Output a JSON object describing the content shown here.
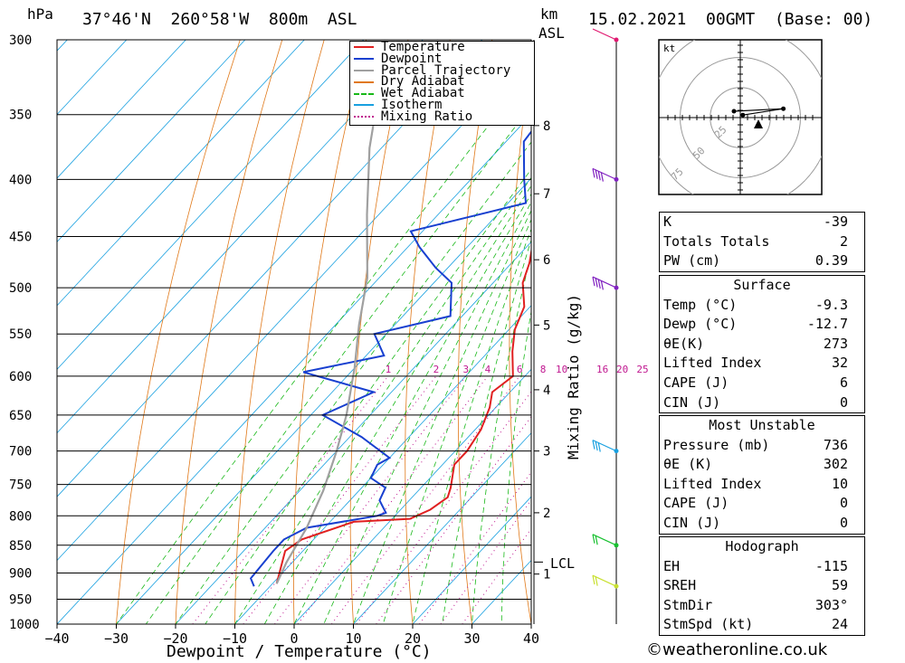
{
  "header": {
    "location": "37°46'N  260°58'W  800m  ASL",
    "datetime": "15.02.2021  00GMT  (Base: 00)",
    "hpa_label": "hPa",
    "km_label": "km",
    "asl_label": "ASL",
    "mixing_label": "Mixing Ratio (g/kg)",
    "x_axis_label": "Dewpoint / Temperature (°C)",
    "lcl_label": "LCL"
  },
  "legend": [
    {
      "label": "Temperature",
      "color": "#e02020",
      "style": "solid"
    },
    {
      "label": "Dewpoint",
      "color": "#1840d0",
      "style": "solid"
    },
    {
      "label": "Parcel Trajectory",
      "color": "#a0a0a0",
      "style": "solid"
    },
    {
      "label": "Dry Adiabat",
      "color": "#e07818",
      "style": "solid"
    },
    {
      "label": "Wet Adiabat",
      "color": "#18b818",
      "style": "dashed"
    },
    {
      "label": "Isotherm",
      "color": "#18a0e0",
      "style": "solid"
    },
    {
      "label": "Mixing Ratio",
      "color": "#c01890",
      "style": "dotted"
    }
  ],
  "chart_data": {
    "type": "line",
    "title": "37°46'N  260°58'W  800m  ASL",
    "xlabel": "Dewpoint / Temperature (°C)",
    "ylabel": "hPa",
    "xlim": [
      -40,
      40
    ],
    "ylim": [
      1000,
      300
    ],
    "x_ticks": [
      -40,
      -30,
      -20,
      -10,
      0,
      10,
      20,
      30,
      40
    ],
    "pressure_levels": [
      300,
      350,
      400,
      450,
      500,
      550,
      600,
      650,
      700,
      750,
      800,
      850,
      900,
      950,
      1000
    ],
    "km_ticks": [
      {
        "label": "8",
        "p": 358
      },
      {
        "label": "7",
        "p": 412
      },
      {
        "label": "6",
        "p": 472
      },
      {
        "label": "5",
        "p": 540
      },
      {
        "label": "4",
        "p": 617
      },
      {
        "label": "3",
        "p": 700
      },
      {
        "label": "2",
        "p": 795
      },
      {
        "label": "1",
        "p": 902
      }
    ],
    "lcl_pressure": 880,
    "mixing_ratio_labels": [
      "1",
      "2",
      "3",
      "4",
      "6",
      "8",
      "10",
      "16",
      "20",
      "25"
    ],
    "mixing_ratio_values": [
      1,
      2,
      3,
      4,
      6,
      8,
      10,
      16,
      20,
      25
    ],
    "series": [
      {
        "name": "Temperature",
        "color": "#e02020",
        "points": [
          [
            -9.3,
            920
          ],
          [
            -13,
            860
          ],
          [
            -12,
            840
          ],
          [
            -6,
            810
          ],
          [
            3,
            805
          ],
          [
            5,
            790
          ],
          [
            6,
            770
          ],
          [
            5,
            755
          ],
          [
            2,
            720
          ],
          [
            2,
            700
          ],
          [
            1,
            670
          ],
          [
            -1,
            640
          ],
          [
            -3,
            620
          ],
          [
            -2,
            600
          ],
          [
            -6,
            570
          ],
          [
            -9,
            545
          ],
          [
            -11,
            520
          ],
          [
            -15,
            495
          ],
          [
            -17,
            475
          ],
          [
            -19,
            460
          ],
          [
            -23,
            430
          ],
          [
            -29,
            395
          ],
          [
            -37,
            350
          ],
          [
            -45,
            310
          ],
          [
            -47,
            300
          ]
        ]
      },
      {
        "name": "Dewpoint",
        "color": "#1840d0",
        "points": [
          [
            -12.7,
            925
          ],
          [
            -14.5,
            910
          ],
          [
            -15,
            860
          ],
          [
            -15,
            840
          ],
          [
            -13,
            820
          ],
          [
            -3,
            800
          ],
          [
            -2,
            795
          ],
          [
            -5,
            775
          ],
          [
            -6,
            755
          ],
          [
            -10,
            740
          ],
          [
            -11,
            720
          ],
          [
            -10,
            710
          ],
          [
            -18,
            680
          ],
          [
            -28,
            650
          ],
          [
            -23,
            620
          ],
          [
            -38,
            595
          ],
          [
            -27,
            575
          ],
          [
            -32,
            550
          ],
          [
            -22,
            530
          ],
          [
            -27,
            495
          ],
          [
            -32,
            480
          ],
          [
            -38,
            460
          ],
          [
            -42,
            445
          ],
          [
            -27,
            420
          ],
          [
            -31,
            400
          ],
          [
            -37,
            370
          ],
          [
            -38,
            345
          ],
          [
            -40,
            320
          ],
          [
            -48,
            300
          ]
        ]
      },
      {
        "name": "Parcel Trajectory",
        "color": "#a0a0a0",
        "points": [
          [
            -9.3,
            920
          ],
          [
            -11,
            880
          ],
          [
            -13,
            820
          ],
          [
            -16,
            760
          ],
          [
            -20,
            700
          ],
          [
            -24,
            650
          ],
          [
            -30,
            590
          ],
          [
            -36,
            540
          ],
          [
            -42,
            490
          ],
          [
            -52,
            430
          ],
          [
            -62,
            375
          ],
          [
            -70,
            330
          ]
        ]
      }
    ]
  },
  "hodograph": {
    "unit_label": "kt",
    "ring_labels": [
      "25",
      "50",
      "75"
    ],
    "stations": [
      [
        2,
        -2
      ],
      [
        34,
        -7
      ],
      [
        -5,
        -5
      ]
    ]
  },
  "wind_barbs": [
    {
      "p": 300,
      "color": "#e01870",
      "flags": 0
    },
    {
      "p": 400,
      "color": "#8020c0",
      "flags": 4
    },
    {
      "p": 500,
      "color": "#8020c0",
      "flags": 4
    },
    {
      "p": 700,
      "color": "#18a0e0",
      "flags": 3
    },
    {
      "p": 850,
      "color": "#18c030",
      "flags": 2
    },
    {
      "p": 925,
      "color": "#c8e030",
      "flags": 2
    }
  ],
  "indices": {
    "general": [
      {
        "label": "K",
        "value": "-39"
      },
      {
        "label": "Totals Totals",
        "value": "2"
      },
      {
        "label": "PW (cm)",
        "value": "0.39"
      }
    ],
    "surface_title": "Surface",
    "surface": [
      {
        "label": "Temp (°C)",
        "value": "-9.3"
      },
      {
        "label": "Dewp (°C)",
        "value": "-12.7"
      },
      {
        "label": "θE(K)",
        "value": "273"
      },
      {
        "label": "Lifted Index",
        "value": "32"
      },
      {
        "label": "CAPE (J)",
        "value": "6"
      },
      {
        "label": "CIN (J)",
        "value": "0"
      }
    ],
    "unstable_title": "Most Unstable",
    "unstable": [
      {
        "label": "Pressure (mb)",
        "value": "736"
      },
      {
        "label": "θE (K)",
        "value": "302"
      },
      {
        "label": "Lifted Index",
        "value": "10"
      },
      {
        "label": "CAPE (J)",
        "value": "0"
      },
      {
        "label": "CIN (J)",
        "value": "0"
      }
    ],
    "hodo_title": "Hodograph",
    "hodo": [
      {
        "label": "EH",
        "value": "-115"
      },
      {
        "label": "SREH",
        "value": "59"
      },
      {
        "label": "StmDir",
        "value": "303°"
      },
      {
        "label": "StmSpd (kt)",
        "value": "24"
      }
    ]
  },
  "footer": {
    "credit": "©weatheronline.co.uk"
  },
  "colors": {
    "temperature": "#e02020",
    "dewpoint": "#1840d0",
    "parcel": "#a0a0a0",
    "dry_adiabat": "#e07818",
    "wet_adiabat": "#18b818",
    "isotherm": "#18a0e0",
    "mixing_ratio": "#c01890"
  }
}
